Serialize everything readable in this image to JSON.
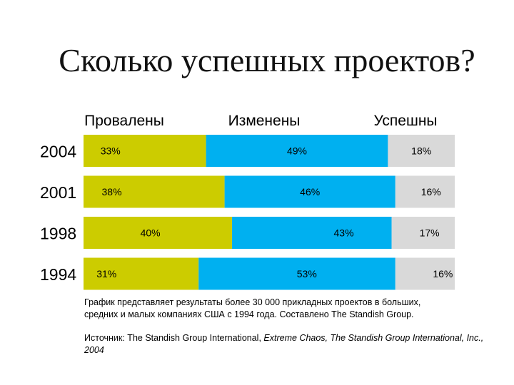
{
  "title": "Сколько успешных проектов?",
  "note_line1": "График представляет результаты более 30 000 прикладных проектов в больших,",
  "note_line2": "средних и малых компаниях США с 1994 года. Составлено The Standish Group.",
  "source": {
    "prefix": "Источник: The Standish Group International, ",
    "italic": "Extreme Chaos, The Standish Group International, Inc., 2004"
  },
  "chart_data": {
    "type": "bar",
    "orientation": "horizontal",
    "stacked": true,
    "percent": true,
    "categories": [
      "2004",
      "2001",
      "1998",
      "1994"
    ],
    "series": [
      {
        "name": "Провалены",
        "color": "#cccc00",
        "values": [
          33,
          38,
          40,
          31
        ],
        "labels": [
          "33%",
          "38%",
          "40%",
          "31%"
        ]
      },
      {
        "name": "Изменены",
        "color": "#00b0f0",
        "values": [
          49,
          46,
          43,
          53
        ],
        "labels": [
          "49%",
          "46%",
          "43%",
          "53%"
        ]
      },
      {
        "name": "Успешны",
        "color": "#d9d9d9",
        "values": [
          18,
          16,
          17,
          16
        ],
        "labels": [
          "18%",
          "16%",
          "17%",
          "16%"
        ]
      }
    ],
    "xlim": [
      0,
      100
    ]
  }
}
